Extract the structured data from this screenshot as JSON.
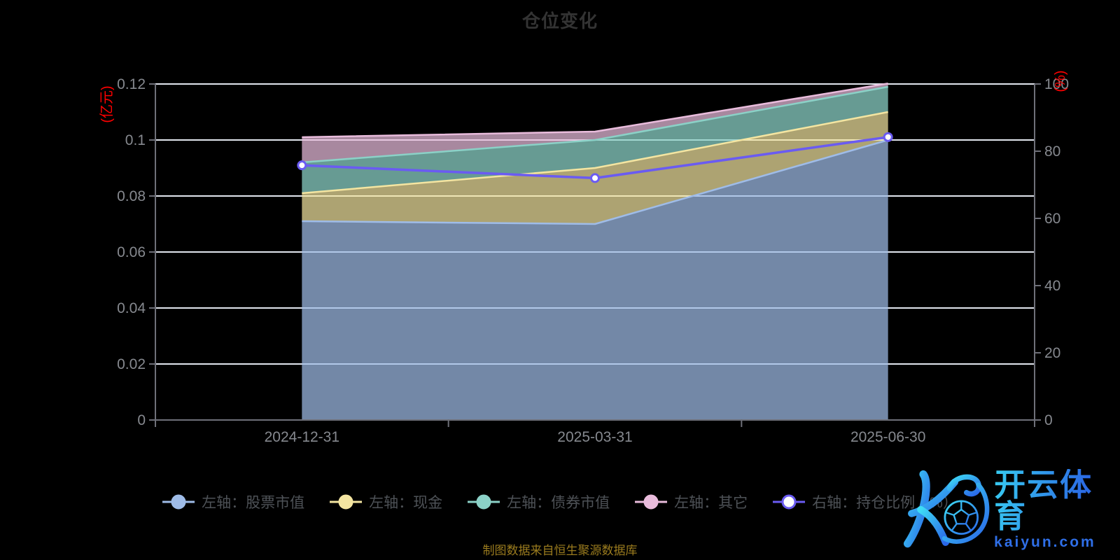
{
  "title": "仓位变化",
  "caption": "制图数据来自恒生聚源数据库",
  "watermark": {
    "logo_letter": "K",
    "brand": "开云体育",
    "domain": "kaiyun.com"
  },
  "legend": [
    {
      "key": "stock",
      "label": "左轴：股票市值",
      "color": "#9FBCE8",
      "marker": "solid"
    },
    {
      "key": "cash",
      "label": "左轴：现金",
      "color": "#F4E5A1",
      "marker": "solid"
    },
    {
      "key": "bond",
      "label": "左轴：债券市值",
      "color": "#8BD1C7",
      "marker": "solid"
    },
    {
      "key": "other",
      "label": "左轴：其它",
      "color": "#E9BCDC",
      "marker": "solid"
    },
    {
      "key": "ratio",
      "label": "右轴：持仓比例（%）",
      "color": "#6A5BF2",
      "marker": "hollow"
    }
  ],
  "chart_data": {
    "type": "area",
    "categories": [
      "2024-12-31",
      "2025-03-31",
      "2025-06-30"
    ],
    "left_axis": {
      "name": "(亿元)",
      "name_color": "#FF0000",
      "max": 0.12,
      "ticks": [
        "0.12",
        "0.1",
        "0.08",
        "0.06",
        "0.04",
        "0.02",
        "0"
      ]
    },
    "right_axis": {
      "name": "(%)",
      "name_color": "#FF0000",
      "max": 100,
      "ticks": [
        "100",
        "80",
        "60",
        "40",
        "20",
        "0"
      ]
    },
    "series": [
      {
        "key": "stock",
        "name": "左轴：股票市值",
        "type": "stacked-area",
        "axis": "left",
        "color": "#9FBCE8",
        "fill_opacity": 0.72,
        "values": [
          0.071,
          0.07,
          0.1
        ]
      },
      {
        "key": "cash",
        "name": "左轴：现金",
        "type": "stacked-area",
        "axis": "left",
        "color": "#F4E5A1",
        "fill_opacity": 0.71,
        "values": [
          0.01,
          0.02,
          0.01
        ]
      },
      {
        "key": "bond",
        "name": "左轴：债券市值",
        "type": "stacked-area",
        "axis": "left",
        "color": "#8BD1C7",
        "fill_opacity": 0.74,
        "values": [
          0.011,
          0.01,
          0.009
        ]
      },
      {
        "key": "other",
        "name": "左轴：其它",
        "type": "stacked-area",
        "axis": "left",
        "color": "#E9BCDC",
        "fill_opacity": 0.72,
        "values": [
          0.009,
          0.003,
          0.0012
        ]
      },
      {
        "key": "ratio",
        "name": "右轴：持仓比例（%）",
        "type": "line",
        "axis": "right",
        "color": "#6A5BF2",
        "values": [
          75.8,
          72.0,
          84.2
        ]
      }
    ],
    "stacked_totals": [
      0.101,
      0.103,
      0.1202
    ],
    "grid": true,
    "legend_position": "bottom",
    "colors": {
      "background": "#000000",
      "grid_line": "#E2E6EE",
      "axis_line": "#6E7079",
      "axis_label": "#86898F",
      "title": "#333333",
      "caption": "#9A7B1E"
    }
  }
}
